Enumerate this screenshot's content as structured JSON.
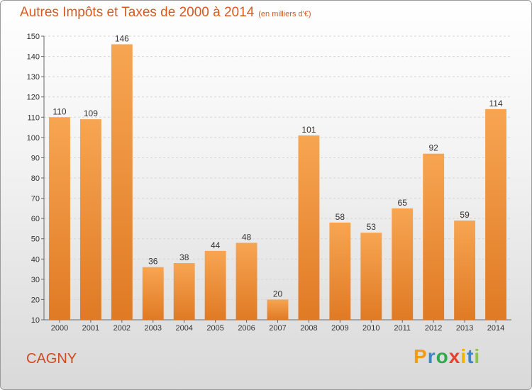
{
  "chart_data": {
    "type": "bar",
    "title": "Autres Impôts et Taxes de 2000 à 2014",
    "subtitle": "(en milliers d'€)",
    "categories": [
      "2000",
      "2001",
      "2002",
      "2003",
      "2004",
      "2005",
      "2006",
      "2007",
      "2008",
      "2009",
      "2010",
      "2011",
      "2012",
      "2013",
      "2014"
    ],
    "values": [
      110,
      109,
      146,
      36,
      38,
      44,
      48,
      20,
      101,
      58,
      53,
      65,
      92,
      59,
      114
    ],
    "ylim": [
      10,
      150
    ],
    "yticks": [
      10,
      20,
      30,
      40,
      50,
      60,
      70,
      80,
      90,
      100,
      110,
      120,
      130,
      140,
      150
    ],
    "grid": true,
    "bar_color_light": "#f7a552",
    "bar_color_dark": "#e07a24",
    "title_color": "#d75a1e"
  },
  "commune": "CAGNY",
  "logo": {
    "letters": [
      "P",
      "r",
      "o",
      "x",
      "i",
      "t",
      "i"
    ],
    "colors": [
      "#f39c12",
      "#3a86c8",
      "#2eaa4c",
      "#e8412c",
      "#f0b400",
      "#3a86c8",
      "#8cc63f"
    ]
  }
}
